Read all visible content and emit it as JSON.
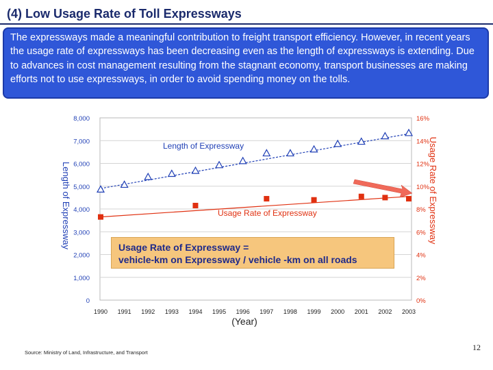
{
  "header": {
    "title": "(4) Low Usage Rate of Toll Expressways"
  },
  "intro": {
    "text": "The expressways made a meaningful contribution to freight transport efficiency. However, in recent years the usage rate of expressways has been decreasing even as the length of expressways is extending.  Due to advances in cost management resulting from the stagnant economy, transport businesses are making efforts not to use expressways, in order to avoid spending money on the tolls."
  },
  "formula": {
    "line1": "Usage Rate of Expressway =",
    "line2": "vehicle-km on Expressway / vehicle -km on all roads"
  },
  "footer": {
    "source": "Source: Ministry of Land, Infrastructure, and Transport",
    "page_number": "12"
  },
  "chart_data": {
    "type": "line",
    "xlabel": "(Year)",
    "ylabel_left": "Length of Expressway",
    "ylabel_right": "Usage Rate of Expressway",
    "x": [
      "1990",
      "1991",
      "1992",
      "1993",
      "1994",
      "1995",
      "1996",
      "1997",
      "1998",
      "1999",
      "2000",
      "2001",
      "2002",
      "2003"
    ],
    "y_left_ticks": [
      "0",
      "1,000",
      "2,000",
      "3,000",
      "4,000",
      "5,000",
      "6,000",
      "7,000",
      "8,000"
    ],
    "y_right_ticks": [
      "0%",
      "2%",
      "4%",
      "6%",
      "8%",
      "10%",
      "12%",
      "14%",
      "16%"
    ],
    "ylim_left": [
      0,
      8000
    ],
    "ylim_right": [
      0,
      16
    ],
    "grid": true,
    "colors": {
      "length": "#1f3fb5",
      "usage": "#e03010",
      "right_axis_text": "#e03010",
      "arrow": "#f06a5a"
    },
    "series": [
      {
        "name": "Length of Expressway",
        "axis": "left",
        "marker": "triangle",
        "trend": [
          4900,
          7300
        ],
        "values": [
          4860,
          5070,
          5410,
          5550,
          5680,
          5930,
          6110,
          6450,
          6450,
          6620,
          6860,
          6960,
          7200,
          7340
        ]
      },
      {
        "name": "Usage Rate of Expressway",
        "axis": "right",
        "marker": "square",
        "trend": [
          7.3,
          9.1
        ],
        "values": [
          7.3,
          null,
          null,
          null,
          8.3,
          null,
          null,
          8.9,
          null,
          8.8,
          null,
          9.1,
          9.0,
          8.9
        ]
      }
    ]
  }
}
